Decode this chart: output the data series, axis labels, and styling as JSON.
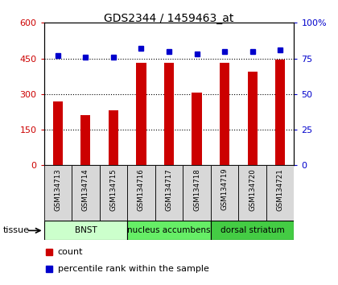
{
  "title": "GDS2344 / 1459463_at",
  "samples": [
    "GSM134713",
    "GSM134714",
    "GSM134715",
    "GSM134716",
    "GSM134717",
    "GSM134718",
    "GSM134719",
    "GSM134720",
    "GSM134721"
  ],
  "counts": [
    270,
    210,
    230,
    430,
    430,
    305,
    430,
    395,
    445
  ],
  "percentiles": [
    77,
    76,
    76,
    82,
    80,
    78,
    80,
    80,
    81
  ],
  "left_ylim": [
    0,
    600
  ],
  "right_ylim": [
    0,
    100
  ],
  "left_yticks": [
    0,
    150,
    300,
    450,
    600
  ],
  "right_yticks": [
    0,
    25,
    50,
    75,
    100
  ],
  "left_ytick_labels": [
    "0",
    "150",
    "300",
    "450",
    "600"
  ],
  "right_ytick_labels": [
    "0",
    "25",
    "50",
    "75",
    "100%"
  ],
  "bar_color": "#cc0000",
  "dot_color": "#0000cc",
  "tissue_groups": [
    {
      "label": "BNST",
      "start": 0,
      "end": 3,
      "color": "#ccffcc"
    },
    {
      "label": "nucleus accumbens",
      "start": 3,
      "end": 6,
      "color": "#66ee66"
    },
    {
      "label": "dorsal striatum",
      "start": 6,
      "end": 9,
      "color": "#44cc44"
    }
  ],
  "tissue_label": "tissue",
  "legend_count_label": "count",
  "legend_percentile_label": "percentile rank within the sample",
  "plot_bg": "#ffffff",
  "sample_box_color": "#d8d8d8"
}
